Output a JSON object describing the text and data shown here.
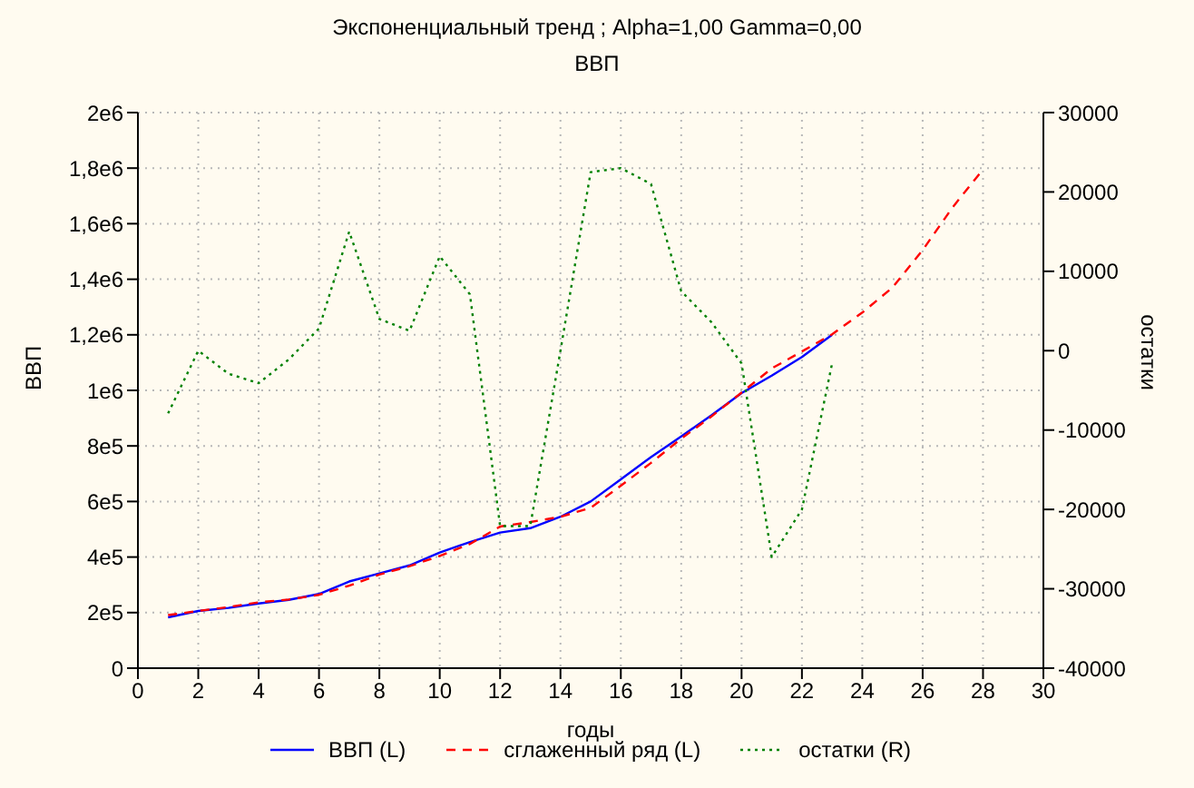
{
  "chart_data": {
    "type": "line",
    "title": "Экспоненциальный тренд ; Alpha=1,00 Gamma=0,00",
    "subtitle": "ВВП",
    "xlabel": "годы",
    "ylabel": "ВВП",
    "y2label": "остатки",
    "x": [
      1,
      2,
      3,
      4,
      5,
      6,
      7,
      8,
      9,
      10,
      11,
      12,
      13,
      14,
      15,
      16,
      17,
      18,
      19,
      20,
      21,
      22,
      23,
      24,
      25,
      26,
      27,
      28
    ],
    "series": [
      {
        "name": "ВВП (L)",
        "color": "#0000ff",
        "line_style": "solid",
        "values": [
          183000,
          206000,
          217000,
          233000,
          246000,
          267000,
          312000,
          341000,
          370000,
          416000,
          454000,
          488000,
          504000,
          545000,
          600000,
          680000,
          760000,
          834000,
          910000,
          990000,
          1053000,
          1120000,
          1200000,
          null,
          null,
          null,
          null,
          null
        ]
      },
      {
        "name": "сглаженный ряд (L)",
        "color": "#ff0000",
        "line_style": "dashed",
        "values": [
          191000,
          206000,
          220000,
          237000,
          247000,
          264000,
          297000,
          337000,
          367000,
          404000,
          447000,
          510000,
          526000,
          545000,
          577000,
          657000,
          739000,
          826000,
          906000,
          992000,
          1079000,
          1140000,
          1202000,
          1280000,
          1370000,
          1505000,
          1660000,
          1795000
        ]
      },
      {
        "name": "остатки (R)",
        "color": "#008000",
        "line_style": "dotted",
        "axis": "y2",
        "values": [
          -7900,
          0,
          -2900,
          -4100,
          -1100,
          2800,
          15000,
          4000,
          2500,
          11900,
          7100,
          -22100,
          -22100,
          0,
          22500,
          23000,
          21000,
          7500,
          3600,
          -1600,
          -26000,
          -20000,
          -1600,
          null,
          null,
          null,
          null,
          null
        ]
      }
    ],
    "xlim": [
      0,
      30
    ],
    "xticks": [
      0,
      2,
      4,
      6,
      8,
      10,
      12,
      14,
      16,
      18,
      20,
      22,
      24,
      26,
      28,
      30
    ],
    "ylim": [
      0,
      2000000
    ],
    "yticks": [
      0,
      {
        "value": 200000,
        "label": "2e5"
      },
      {
        "value": 400000,
        "label": "4e5"
      },
      {
        "value": 600000,
        "label": "6e5"
      },
      {
        "value": 800000,
        "label": "8e5"
      },
      {
        "value": 1000000,
        "label": "1e6"
      },
      {
        "value": 1200000,
        "label": "1,2e6"
      },
      {
        "value": 1400000,
        "label": "1,4e6"
      },
      {
        "value": 1600000,
        "label": "1,6e6"
      },
      {
        "value": 1800000,
        "label": "1,8e6"
      },
      {
        "value": 2000000,
        "label": "2e6"
      }
    ],
    "y2lim": [
      -40000,
      30000
    ],
    "y2ticks": [
      -40000,
      -30000,
      -20000,
      -10000,
      0,
      10000,
      20000,
      30000
    ],
    "grid": true,
    "legend": "bottom",
    "marker": "none"
  }
}
